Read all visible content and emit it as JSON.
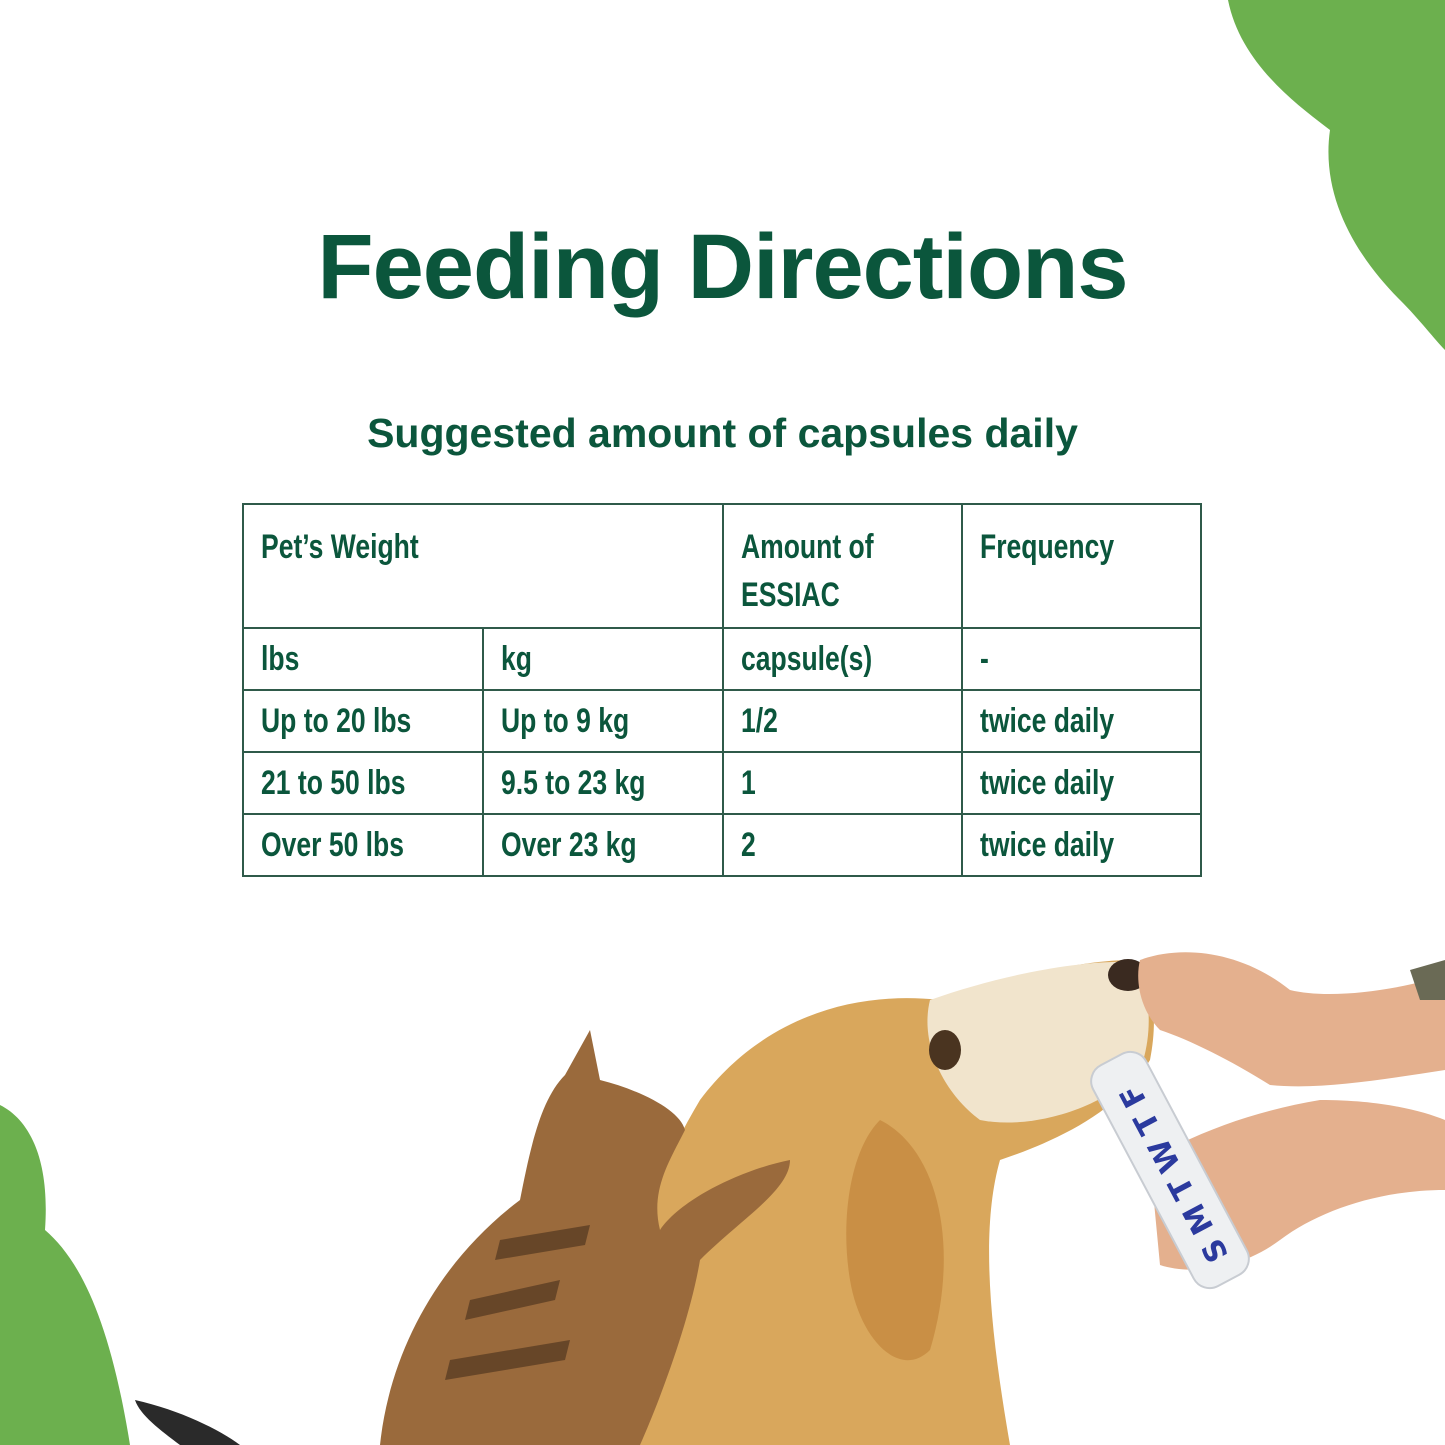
{
  "title": "Feeding Directions",
  "subtitle": "Suggested amount of capsules daily",
  "colors": {
    "text": "#0b563c",
    "accent_blob": "#6cb04e",
    "border": "#2f5a4a"
  },
  "table": {
    "header": [
      "Pet’s Weight",
      "Amount of\nESSIAC",
      "Frequency"
    ],
    "units": [
      "lbs",
      "kg",
      "capsule(s)",
      "-"
    ],
    "rows": [
      [
        "Up to 20 lbs",
        "Up to 9 kg",
        "1/2",
        "twice daily"
      ],
      [
        "21 to 50 lbs",
        "9.5 to 23 kg",
        "1",
        "twice daily"
      ],
      [
        "Over 50 lbs",
        "Over 23 kg",
        "2",
        "twice daily"
      ]
    ]
  },
  "photo": {
    "pill_box_letters": "SMTWTF"
  }
}
